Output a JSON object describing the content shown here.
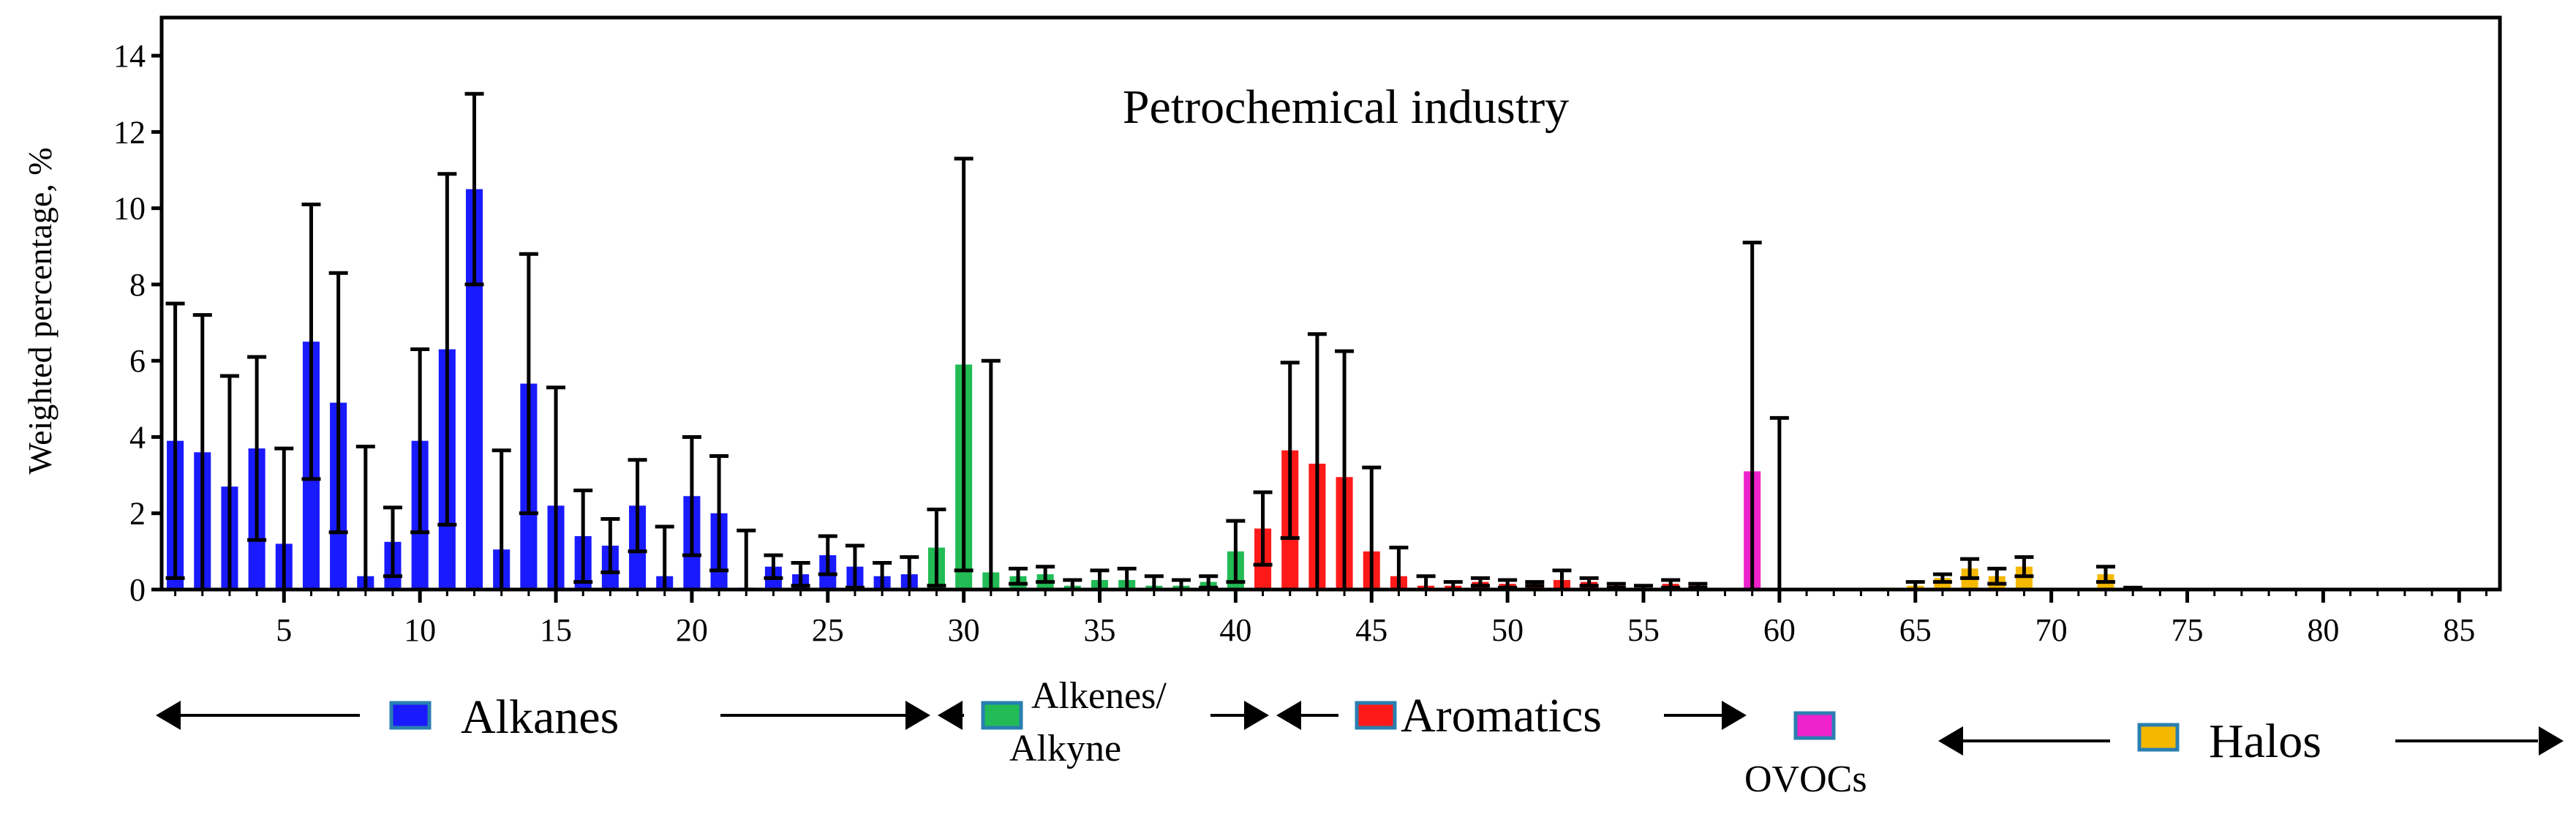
{
  "chart_data": {
    "type": "bar",
    "title": "Petrochemical industry",
    "xlabel": "",
    "ylabel": "Weighted percentage, %",
    "xlim": [
      0.5,
      86.5
    ],
    "ylim": [
      0,
      15
    ],
    "xticks": [
      5,
      10,
      15,
      20,
      25,
      30,
      35,
      40,
      45,
      50,
      55,
      60,
      65,
      70,
      75,
      80,
      85
    ],
    "yticks": [
      0,
      2,
      4,
      6,
      8,
      10,
      12,
      14
    ],
    "grid": false,
    "colors": {
      "alkanes": "#1a1aff",
      "alkenes": "#22bb55",
      "aromatics": "#ff1a1a",
      "ovocs": "#ee22cc",
      "halos": "#f5b800"
    },
    "groups": [
      {
        "name": "Alkanes",
        "color": "#1a1aff",
        "from": 1,
        "to": 28
      },
      {
        "name": "Alkenes/ Alkyne",
        "line1": "Alkenes/",
        "line2": "Alkyne",
        "color": "#22bb55",
        "from": 29,
        "to": 40
      },
      {
        "name": "Aromatics",
        "color": "#ff1a1a",
        "from": 41,
        "to": 57
      },
      {
        "name": "OVOCs",
        "color": "#ee22cc",
        "from": 58,
        "to": 61
      },
      {
        "name": "Halos",
        "color": "#f5b800",
        "from": 62,
        "to": 86
      }
    ],
    "x": [
      1,
      2,
      3,
      4,
      5,
      6,
      7,
      8,
      9,
      10,
      11,
      12,
      13,
      14,
      15,
      16,
      17,
      18,
      19,
      20,
      21,
      22,
      23,
      24,
      25,
      26,
      27,
      28,
      29,
      30,
      31,
      32,
      33,
      34,
      35,
      36,
      37,
      38,
      39,
      40,
      41,
      42,
      43,
      44,
      45,
      46,
      47,
      48,
      49,
      50,
      51,
      52,
      53,
      54,
      55,
      56,
      57,
      58,
      59,
      60,
      61,
      62,
      63,
      64,
      65,
      66,
      67,
      68,
      69,
      70,
      71,
      72,
      73,
      74,
      75,
      76,
      77,
      78,
      79,
      80,
      81,
      82,
      83,
      84,
      85,
      86
    ],
    "values": [
      3.9,
      3.6,
      2.7,
      3.7,
      1.2,
      6.5,
      4.9,
      0.35,
      1.25,
      3.9,
      6.3,
      10.5,
      1.05,
      5.4,
      2.2,
      1.4,
      1.15,
      2.2,
      0.35,
      2.45,
      2.0,
      0.05,
      0.6,
      0.4,
      0.9,
      0.6,
      0.35,
      0.4,
      1.1,
      5.9,
      0.45,
      0.35,
      0.4,
      0.1,
      0.25,
      0.25,
      0.1,
      0.1,
      0.2,
      1.0,
      1.6,
      3.65,
      3.3,
      2.95,
      1.0,
      0.35,
      0.1,
      0.1,
      0.2,
      0.15,
      0.15,
      0.25,
      0.2,
      0.1,
      0.05,
      0.15,
      0.1,
      0.0,
      3.1,
      0.0,
      0.0,
      0.0,
      0.0,
      0.05,
      0.1,
      0.3,
      0.55,
      0.35,
      0.6,
      0.0,
      0.0,
      0.4,
      0.0,
      0.0,
      0.0,
      0.0,
      0.0,
      0.0,
      0.0,
      0.0,
      0.0,
      0.0,
      0.0,
      0.0,
      0.0,
      0.0
    ],
    "errors": [
      3.6,
      3.6,
      2.9,
      2.4,
      2.5,
      3.6,
      3.4,
      3.4,
      0.9,
      2.4,
      4.6,
      2.5,
      2.6,
      3.4,
      3.1,
      1.2,
      0.7,
      1.2,
      1.3,
      1.55,
      1.5,
      1.5,
      0.3,
      0.3,
      0.5,
      0.55,
      0.35,
      0.45,
      1.0,
      5.4,
      5.55,
      0.2,
      0.2,
      0.15,
      0.25,
      0.3,
      0.25,
      0.15,
      0.15,
      0.8,
      0.95,
      2.3,
      3.4,
      3.3,
      2.2,
      0.75,
      0.25,
      0.1,
      0.1,
      0.1,
      0.05,
      0.25,
      0.1,
      0.05,
      0.05,
      0.1,
      0.05,
      0.0,
      6.0,
      4.5,
      0.0,
      0.0,
      0.0,
      0.0,
      0.1,
      0.1,
      0.25,
      0.2,
      0.25,
      0.0,
      0.0,
      0.2,
      0.05,
      0.0,
      0.0,
      0.0,
      0.0,
      0.0,
      0.0,
      0.0,
      0.0,
      0.0,
      0.0,
      0.0,
      0.0,
      0.0
    ]
  }
}
